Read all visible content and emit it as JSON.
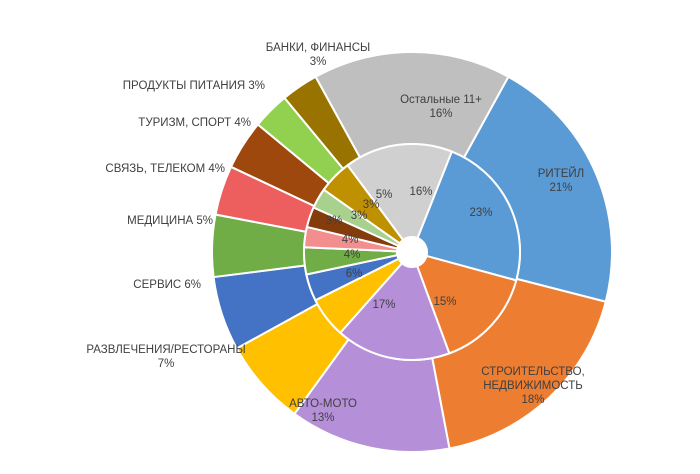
{
  "chart_data": {
    "type": "pie",
    "subtype": "sunburst",
    "outer_ring": [
      {
        "label": "РИТЕЙЛ",
        "value": 21,
        "value_text": "21%",
        "color": "#5b9bd5"
      },
      {
        "label": "СТРОИТЕЛЬСТВО, НЕДВИЖИМОСТЬ",
        "value": 18,
        "value_text": "18%",
        "color": "#ed7d31"
      },
      {
        "label": "АВТО-МОТО",
        "value": 13,
        "value_text": "13%",
        "color": "#b68fd9"
      },
      {
        "label": "РАЗВЛЕЧЕНИЯ/РЕСТОРАНЫ",
        "value": 7,
        "value_text": "7%",
        "color": "#ffc000"
      },
      {
        "label": "СЕРВИС",
        "value": 6,
        "value_text": "6%",
        "color": "#4472c4"
      },
      {
        "label": "МЕДИЦИНА",
        "value": 5,
        "value_text": "5%",
        "color": "#70ad47"
      },
      {
        "label": "СВЯЗЬ, ТЕЛЕКОМ",
        "value": 4,
        "value_text": "4%",
        "color": "#ed5f5f"
      },
      {
        "label": "ТУРИЗМ, СПОРТ",
        "value": 4,
        "value_text": "4%",
        "color": "#9e480e"
      },
      {
        "label": "ПРОДУКТЫ ПИТАНИЯ",
        "value": 3,
        "value_text": "3%",
        "color": "#92d050"
      },
      {
        "label": "БАНКИ, ФИНАНСЫ",
        "value": 3,
        "value_text": "3%",
        "color": "#997300"
      },
      {
        "label": "Остальные 11+",
        "value": 16,
        "value_text": "16%",
        "color": "#bfbfbf"
      }
    ],
    "inner_ring": [
      {
        "value": 23,
        "value_text": "23%",
        "color": "#5b9bd5"
      },
      {
        "value": 15,
        "value_text": "15%",
        "color": "#ed7d31"
      },
      {
        "value": 17,
        "value_text": "17%",
        "color": "#b68fd9"
      },
      {
        "value": 6,
        "value_text": "6%",
        "color": "#ffc000"
      },
      {
        "value": 4,
        "value_text": "4%",
        "color": "#4472c4"
      },
      {
        "value": 4,
        "value_text": "4%",
        "color": "#70ad47"
      },
      {
        "value": 3,
        "value_text": "3%",
        "color": "#f28e8e"
      },
      {
        "value": 3,
        "value_text": "3%",
        "color": "#843c0c"
      },
      {
        "value": 3,
        "value_text": "3%",
        "color": "#a9d18e"
      },
      {
        "value": 5,
        "value_text": "5%",
        "color": "#bf9000"
      },
      {
        "value": 16,
        "value_text": "16%",
        "color": "#d0d0d0"
      }
    ],
    "legend": "none"
  }
}
